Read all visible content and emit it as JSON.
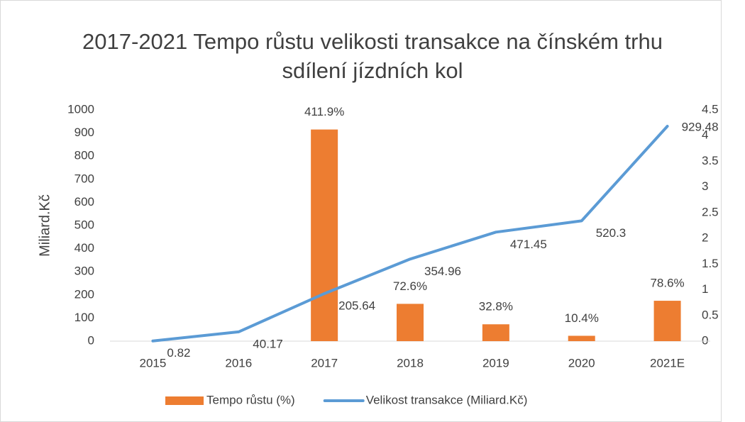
{
  "chart_data": {
    "type": "bar_line",
    "title": "2017-2021 Tempo růstu velikosti transakce na čínském trhu sdílení jízdních kol",
    "y_label": "Miliard.Kč",
    "categories": [
      "2015",
      "2016",
      "2017",
      "2018",
      "2019",
      "2020",
      "2021E"
    ],
    "series": [
      {
        "name": "Tempo růstu (%)",
        "type": "bar",
        "axis": "y2",
        "color": "#ed7d31",
        "values": [
          null,
          null,
          4.119,
          0.726,
          0.328,
          0.104,
          0.786
        ],
        "value_labels": [
          null,
          null,
          "411.9%",
          "72.6%",
          "32.8%",
          "10.4%",
          "78.6%"
        ]
      },
      {
        "name": "Velikost transakce (Miliard.Kč)",
        "type": "line",
        "axis": "y",
        "color": "#5b9bd5",
        "values": [
          0.82,
          40.17,
          205.64,
          354.96,
          471.45,
          520.3,
          929.48
        ]
      }
    ],
    "ylim": [
      0,
      1000
    ],
    "yticks": [
      0,
      100,
      200,
      300,
      400,
      500,
      600,
      700,
      800,
      900,
      1000
    ],
    "y2lim": [
      0,
      4.5
    ],
    "y2ticks": [
      0,
      0.5,
      1,
      1.5,
      2,
      2.5,
      3,
      3.5,
      4,
      4.5
    ]
  }
}
